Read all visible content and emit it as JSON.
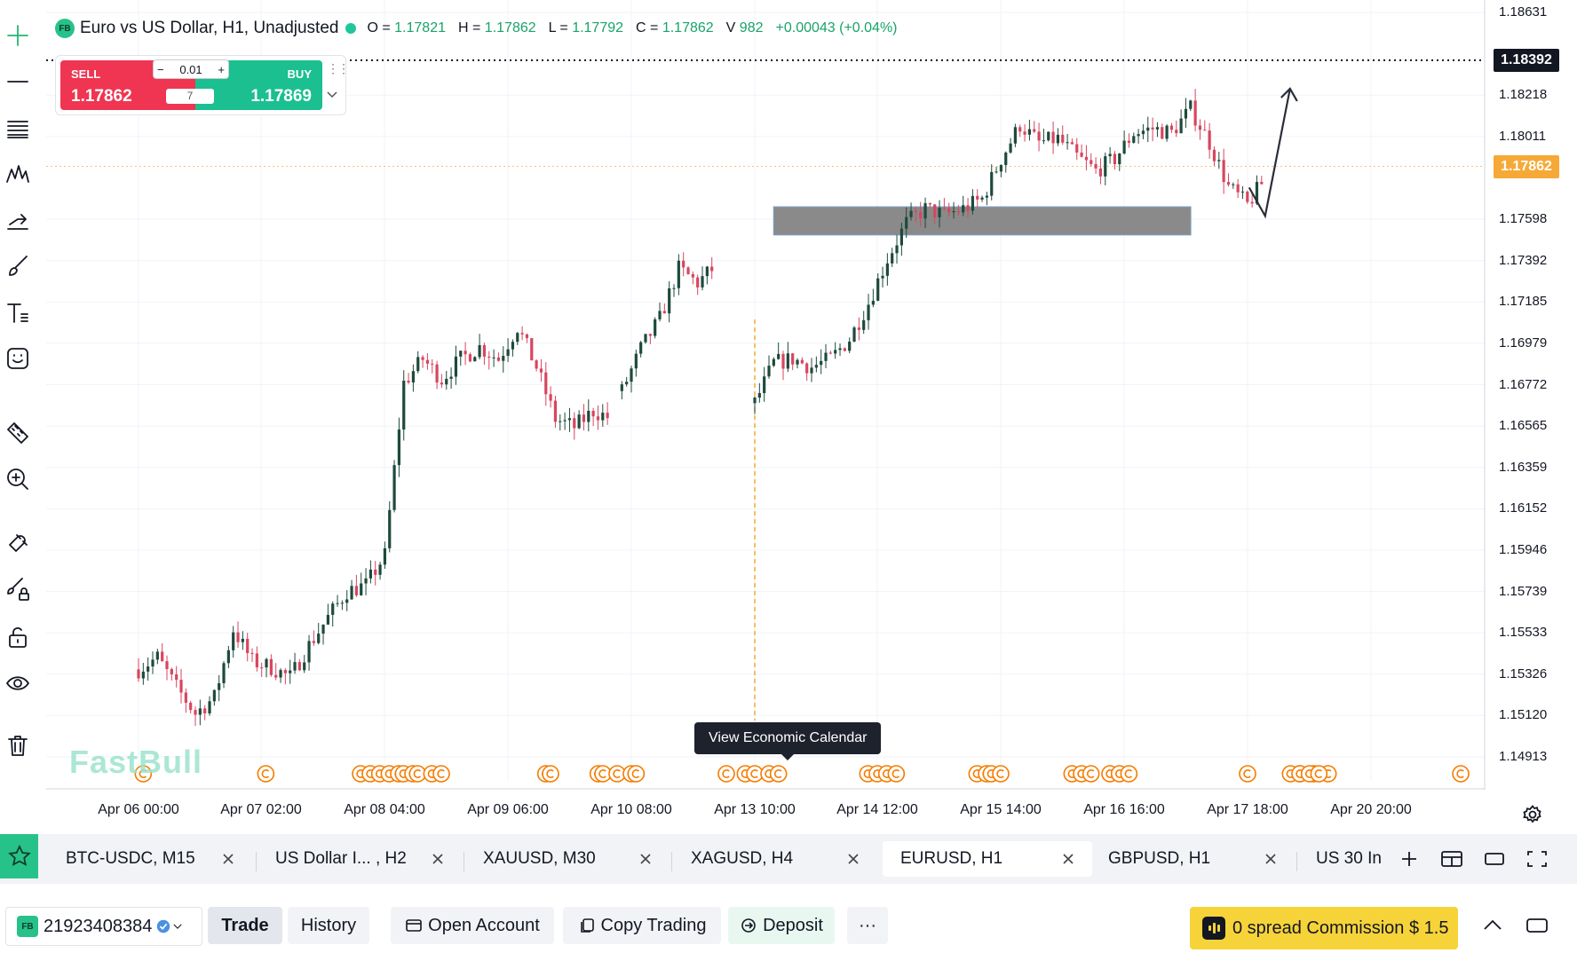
{
  "symbol": {
    "badge": "FB",
    "title": "Euro vs US Dollar, H1, Unadjusted",
    "open_label": "O =",
    "open": "1.17821",
    "high_label": "H =",
    "high": "1.17862",
    "low_label": "L =",
    "low": "1.17792",
    "close_label": "C =",
    "close": "1.17862",
    "volume_label": "V",
    "volume": "982",
    "change": "+0.00043 (+0.04%)"
  },
  "trade_widget": {
    "sell_label": "SELL",
    "sell_price": "1.17862",
    "buy_label": "BUY",
    "buy_price": "1.17869",
    "lot_minus": "−",
    "lot": "0.01",
    "lot_plus": "+",
    "spread": "7"
  },
  "price_axis": {
    "ticks": [
      "1.18631",
      "1.18218",
      "1.18011",
      "1.17598",
      "1.17392",
      "1.17185",
      "1.16979",
      "1.16772",
      "1.16565",
      "1.16359",
      "1.16152",
      "1.15946",
      "1.15739",
      "1.15533",
      "1.15326",
      "1.15120",
      "1.14913"
    ],
    "crosshair_price": "1.18392",
    "last_price": "1.17862"
  },
  "time_axis": {
    "ticks": [
      "Apr 06 00:00",
      "Apr 07 02:00",
      "Apr 08 04:00",
      "Apr 09 06:00",
      "Apr 10 08:00",
      "Apr 13 10:00",
      "Apr 14 12:00",
      "Apr 15 14:00",
      "Apr 16 16:00",
      "Apr 17 18:00",
      "Apr 20 20:00"
    ]
  },
  "tooltip": {
    "text": "View Economic Calendar"
  },
  "watermark": "FastBull",
  "colors": {
    "up": "#1d4a3c",
    "down": "#d9455f",
    "accent": "#27c28a",
    "last_price": "#f6a936",
    "event": "#f57c00"
  },
  "chart_data": {
    "type": "candlestick",
    "symbol": "EURUSD",
    "timeframe": "H1",
    "segments": [
      {
        "start": "Apr 06 00:00",
        "anchors": [
          1.1535,
          1.1541,
          1.1526,
          1.1513,
          1.1521,
          1.1555,
          1.1539,
          1.1536,
          1.1531,
          1.1547,
          1.1561,
          1.1574,
          1.1577,
          1.1592,
          1.1678,
          1.169,
          1.168,
          1.169,
          1.1696,
          1.169,
          1.1706,
          1.1686,
          1.166,
          1.1656,
          1.1664,
          1.166
        ]
      },
      {
        "start": "Apr 10 06:00",
        "anchors": [
          1.1674,
          1.1695,
          1.171,
          1.1735,
          1.1728,
          1.1737
        ]
      },
      {
        "start": "Apr 13 10:00",
        "anchors": [
          1.1668,
          1.1688,
          1.169,
          1.1686,
          1.169,
          1.17,
          1.1718,
          1.174,
          1.1758,
          1.1765,
          1.1762,
          1.1765,
          1.177,
          1.179,
          1.1807,
          1.1798,
          1.18,
          1.1791,
          1.1784,
          1.179,
          1.1803,
          1.1805,
          1.1803,
          1.1815,
          1.1798,
          1.1776,
          1.1767,
          1.1781
        ]
      }
    ],
    "zone": {
      "from": "Apr 13 14:00",
      "to": "Apr 17 06:00",
      "top": 1.1766,
      "bottom": 1.1752
    },
    "projection": {
      "from_price": 1.1765,
      "to_price": 1.1825
    },
    "event_times": [
      "Apr 06 01:00",
      "Apr 07 03:00",
      "Apr 07 23:00",
      "Apr 08 01:00",
      "Apr 08 03:00",
      "Apr 08 05:00",
      "Apr 08 07:00",
      "Apr 08 08:00",
      "Apr 08 10:00",
      "Apr 08 11:00",
      "Apr 08 14:00",
      "Apr 08 16:00",
      "Apr 09 14:00",
      "Apr 09 15:00",
      "Apr 10 01:00",
      "Apr 10 02:00",
      "Apr 10 05:00",
      "Apr 10 08:00",
      "Apr 10 09:00",
      "Apr 13 04:00",
      "Apr 13 08:00",
      "Apr 13 10:00",
      "Apr 13 13:00",
      "Apr 13 15:00",
      "Apr 14 10:00",
      "Apr 14 12:00",
      "Apr 14 14:00",
      "Apr 14 16:00",
      "Apr 15 09:00",
      "Apr 15 11:00",
      "Apr 15 12:00",
      "Apr 15 14:00",
      "Apr 16 05:00",
      "Apr 16 07:00",
      "Apr 16 09:00",
      "Apr 16 13:00",
      "Apr 16 15:00",
      "Apr 16 17:00",
      "Apr 17 18:00",
      "Apr 18 05:00",
      "Apr 18 08:00",
      "Apr 18 11:00",
      "Apr 19 15:00",
      "Apr 20 03:00",
      "Apr 20 05:00",
      "Apr 20 07:00",
      "Apr 20 09:00"
    ]
  },
  "tabs": [
    {
      "label": "BTC-USDC, M15"
    },
    {
      "label": "US Dollar I... , H2"
    },
    {
      "label": "XAUUSD, M30"
    },
    {
      "label": "XAGUSD, H4"
    },
    {
      "label": "EURUSD, H1",
      "active": true
    },
    {
      "label": "GBPUSD, H1"
    },
    {
      "label": "US 30 In"
    }
  ],
  "bottom": {
    "account_badge": "FB",
    "account_id": "21923408384",
    "trade": "Trade",
    "history": "History",
    "open_account": "Open Account",
    "copy_trading": "Copy Trading",
    "deposit": "Deposit",
    "more": "···",
    "promo": "0 spread Commission $ 1.5"
  },
  "icons": [
    "plus-icon",
    "horizontal-line-icon",
    "fib-lines-icon",
    "pattern-icon",
    "trend-arrow-icon",
    "brush-icon",
    "text-icon",
    "emoji-icon",
    "ruler-icon",
    "zoom-in-icon",
    "magnet-icon",
    "lock-drawing-icon",
    "unlock-icon",
    "eye-icon",
    "trash-icon",
    "star-icon",
    "gear-icon",
    "close-icon",
    "layout-icon",
    "window-icon",
    "fullscreen-icon",
    "chevron-up-icon",
    "verified-icon"
  ]
}
